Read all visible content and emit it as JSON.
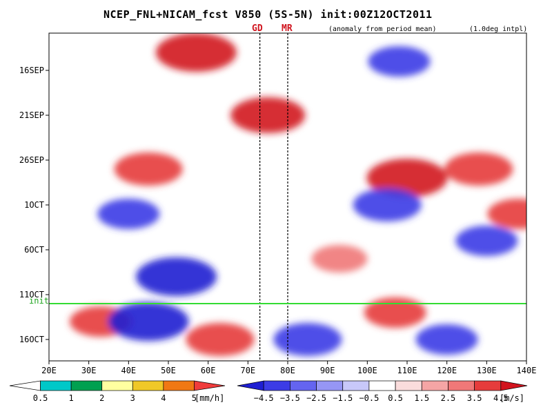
{
  "chart_data": {
    "type": "heatmap",
    "title": "NCEP_FNL+NICAM_fcst V850 (5S-5N) init:00Z12OCT2011",
    "subtitle": "(anomaly from period mean)",
    "note": "(1.0deg intpl)",
    "x_axis": {
      "range": [
        20,
        140
      ],
      "ticks": [
        20,
        30,
        40,
        50,
        60,
        70,
        80,
        90,
        100,
        110,
        120,
        130,
        140
      ],
      "tick_labels": [
        "20E",
        "30E",
        "40E",
        "50E",
        "60E",
        "70E",
        "80E",
        "90E",
        "100E",
        "110E",
        "120E",
        "130E",
        "140E"
      ]
    },
    "y_axis": {
      "ticks": [
        "16SEP",
        "21SEP",
        "26SEP",
        "1OCT",
        "6OCT",
        "11OCT",
        "16OCT"
      ],
      "tick_labels": [
        "16SEP",
        "21SEP",
        "26SEP",
        "1OCT",
        "6OCT",
        "11OCT",
        "16OCT"
      ],
      "direction": "time increases downward"
    },
    "markers": [
      {
        "label": "GD",
        "lon": 73
      },
      {
        "label": "MR",
        "lon": 80
      }
    ],
    "init_label": "init",
    "init_date": "12OCT",
    "anomaly_features": [
      {
        "sign": "positive",
        "lon": 57,
        "date": "14SEP",
        "strength": 4.5
      },
      {
        "sign": "positive",
        "lon": 45,
        "date": "27SEP",
        "strength": 3.5
      },
      {
        "sign": "positive",
        "lon": 75,
        "date": "21SEP",
        "strength": 4.0
      },
      {
        "sign": "positive",
        "lon": 110,
        "date": "28SEP",
        "strength": 4.5
      },
      {
        "sign": "positive",
        "lon": 128,
        "date": "27SEP",
        "strength": 3.5
      },
      {
        "sign": "positive",
        "lon": 138,
        "date": "2OCT",
        "strength": 3.0
      },
      {
        "sign": "positive",
        "lon": 63,
        "date": "16OCT",
        "strength": 3.5
      },
      {
        "sign": "positive",
        "lon": 33,
        "date": "14OCT",
        "strength": 3.0
      },
      {
        "sign": "positive",
        "lon": 107,
        "date": "13OCT",
        "strength": 3.0
      },
      {
        "sign": "positive",
        "lon": 93,
        "date": "7OCT",
        "strength": 2.5
      },
      {
        "sign": "negative",
        "lon": 52,
        "date": "9OCT",
        "strength": 4.5
      },
      {
        "sign": "negative",
        "lon": 45,
        "date": "14OCT",
        "strength": 4.5
      },
      {
        "sign": "negative",
        "lon": 105,
        "date": "1OCT",
        "strength": 3.5
      },
      {
        "sign": "negative",
        "lon": 108,
        "date": "15SEP",
        "strength": 3.0
      },
      {
        "sign": "negative",
        "lon": 40,
        "date": "2OCT",
        "strength": 3.0
      },
      {
        "sign": "negative",
        "lon": 85,
        "date": "16OCT",
        "strength": 3.5
      },
      {
        "sign": "negative",
        "lon": 130,
        "date": "5OCT",
        "strength": 3.0
      },
      {
        "sign": "negative",
        "lon": 120,
        "date": "16OCT",
        "strength": 3.0
      }
    ],
    "rain_legend": {
      "unit": "[mm/h]",
      "labels": [
        "0.5",
        "1",
        "2",
        "3",
        "4",
        "5"
      ],
      "colors": [
        "#ffffff",
        "#00c8c8",
        "#00a050",
        "#ffffa0",
        "#f0c828",
        "#f07814",
        "#f03c3c"
      ]
    },
    "wind_legend": {
      "unit": "[m/s]",
      "labels": [
        "−4.5",
        "−3.5",
        "−2.5",
        "−1.5",
        "−0.5",
        "0.5",
        "1.5",
        "2.5",
        "3.5",
        "4.5"
      ],
      "colors": [
        "#1e1ed2",
        "#3c3ce6",
        "#6464f0",
        "#9696f5",
        "#c8c8fa",
        "#ffffff",
        "#fadcdc",
        "#f5a5a5",
        "#f07878",
        "#e63c3c",
        "#d2141e"
      ]
    },
    "colors": {
      "init_line": "#32dc32",
      "marker_text": "#d0141e"
    }
  }
}
